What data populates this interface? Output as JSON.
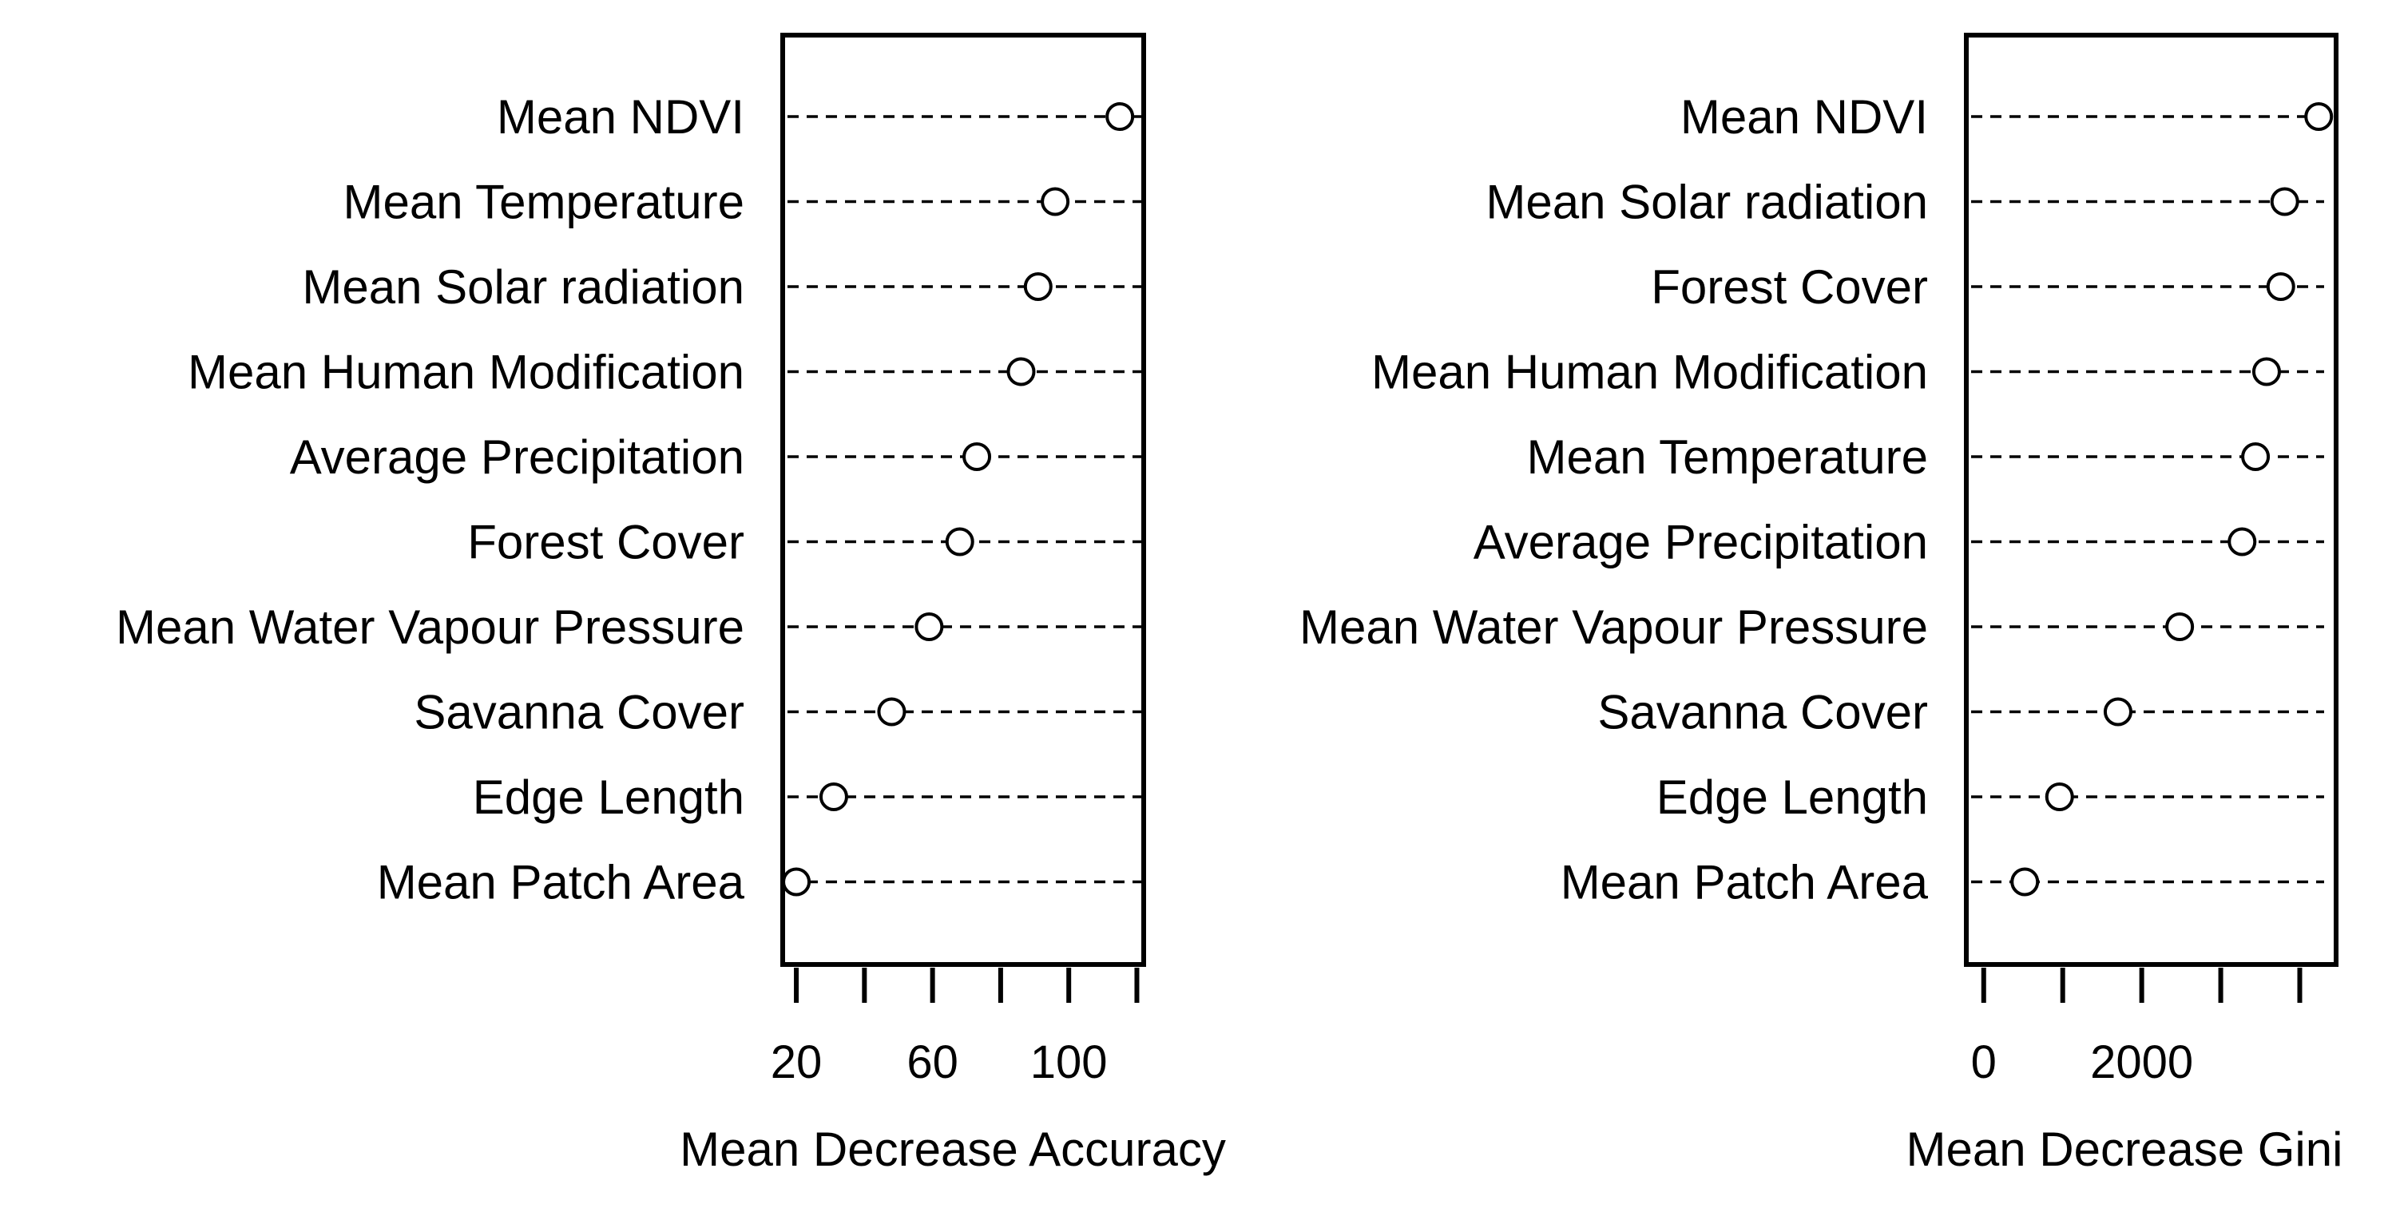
{
  "chart_data": [
    {
      "type": "scatter",
      "title": "",
      "xlabel": "Mean Decrease Accuracy",
      "ylabel": "",
      "categories": [
        "Mean NDVI",
        "Mean Temperature",
        "Mean Solar radiation",
        "Mean Human Modification",
        "Average Precipitation",
        "Forest Cover",
        "Mean Water Vapour Pressure",
        "Savanna Cover",
        "Edge Length",
        "Mean Patch Area"
      ],
      "values": [
        115,
        96,
        91,
        86,
        73,
        68,
        59,
        48,
        31,
        20
      ],
      "xlim": [
        16,
        122
      ],
      "xticks": [
        20,
        40,
        60,
        80,
        100,
        120
      ],
      "xtick_labels": [
        "20",
        "",
        "60",
        "",
        "100",
        ""
      ],
      "grid": false,
      "marker": "open-circle",
      "colors": {
        "marker_fill": "#ffffff",
        "marker_stroke": "#000000",
        "line": "#000000"
      }
    },
    {
      "type": "scatter",
      "title": "",
      "xlabel": "Mean Decrease Gini",
      "ylabel": "",
      "categories": [
        "Mean NDVI",
        "Mean Solar radiation",
        "Forest Cover",
        "Mean Human Modification",
        "Mean Temperature",
        "Average Precipitation",
        "Mean Water Vapour Pressure",
        "Savanna Cover",
        "Edge Length",
        "Mean Patch Area"
      ],
      "values": [
        4240,
        3810,
        3760,
        3580,
        3440,
        3270,
        2480,
        1700,
        960,
        520
      ],
      "xlim": [
        -220,
        4460
      ],
      "xticks": [
        0,
        1000,
        2000,
        3000,
        4000
      ],
      "xtick_labels": [
        "0",
        "",
        "2000",
        "",
        ""
      ],
      "grid": false,
      "marker": "open-circle",
      "colors": {
        "marker_fill": "#ffffff",
        "marker_stroke": "#000000",
        "line": "#000000"
      }
    }
  ]
}
